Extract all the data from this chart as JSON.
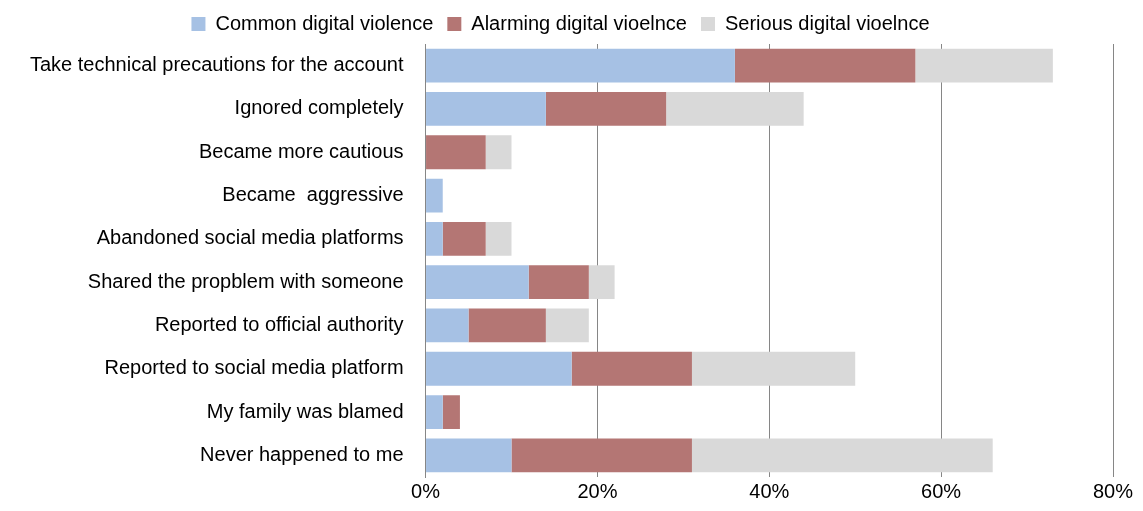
{
  "chart_data": {
    "type": "bar",
    "orientation": "horizontal",
    "stacked": true,
    "categories": [
      "Take technical precautions for the account",
      "Ignored completely",
      "Became more cautious",
      "Became  aggressive",
      "Abandoned social media platforms",
      "Shared the propblem with someone",
      "Reported to official authority",
      "Reported to social media platform",
      "My family was blamed",
      "Never happened to me"
    ],
    "series": [
      {
        "name": "Common digital violence",
        "color": "#a6c1e4",
        "values": [
          36,
          14,
          0,
          2,
          2,
          12,
          5,
          17,
          2,
          10
        ]
      },
      {
        "name": "Alarming digital vioelnce",
        "color": "#b47674",
        "values": [
          21,
          14,
          7,
          0,
          5,
          7,
          9,
          14,
          2,
          21
        ]
      },
      {
        "name": "Serious digital vioelnce",
        "color": "#d9d9d9",
        "values": [
          16,
          16,
          3,
          0,
          3,
          3,
          5,
          19,
          0,
          35
        ]
      }
    ],
    "xlim": [
      0,
      80
    ],
    "xticks": [
      {
        "value": 0,
        "label": "0%"
      },
      {
        "value": 20,
        "label": "20%"
      },
      {
        "value": 40,
        "label": "40%"
      },
      {
        "value": 60,
        "label": "60%"
      },
      {
        "value": 80,
        "label": "80%"
      }
    ],
    "grid": "x",
    "legend": "top"
  }
}
